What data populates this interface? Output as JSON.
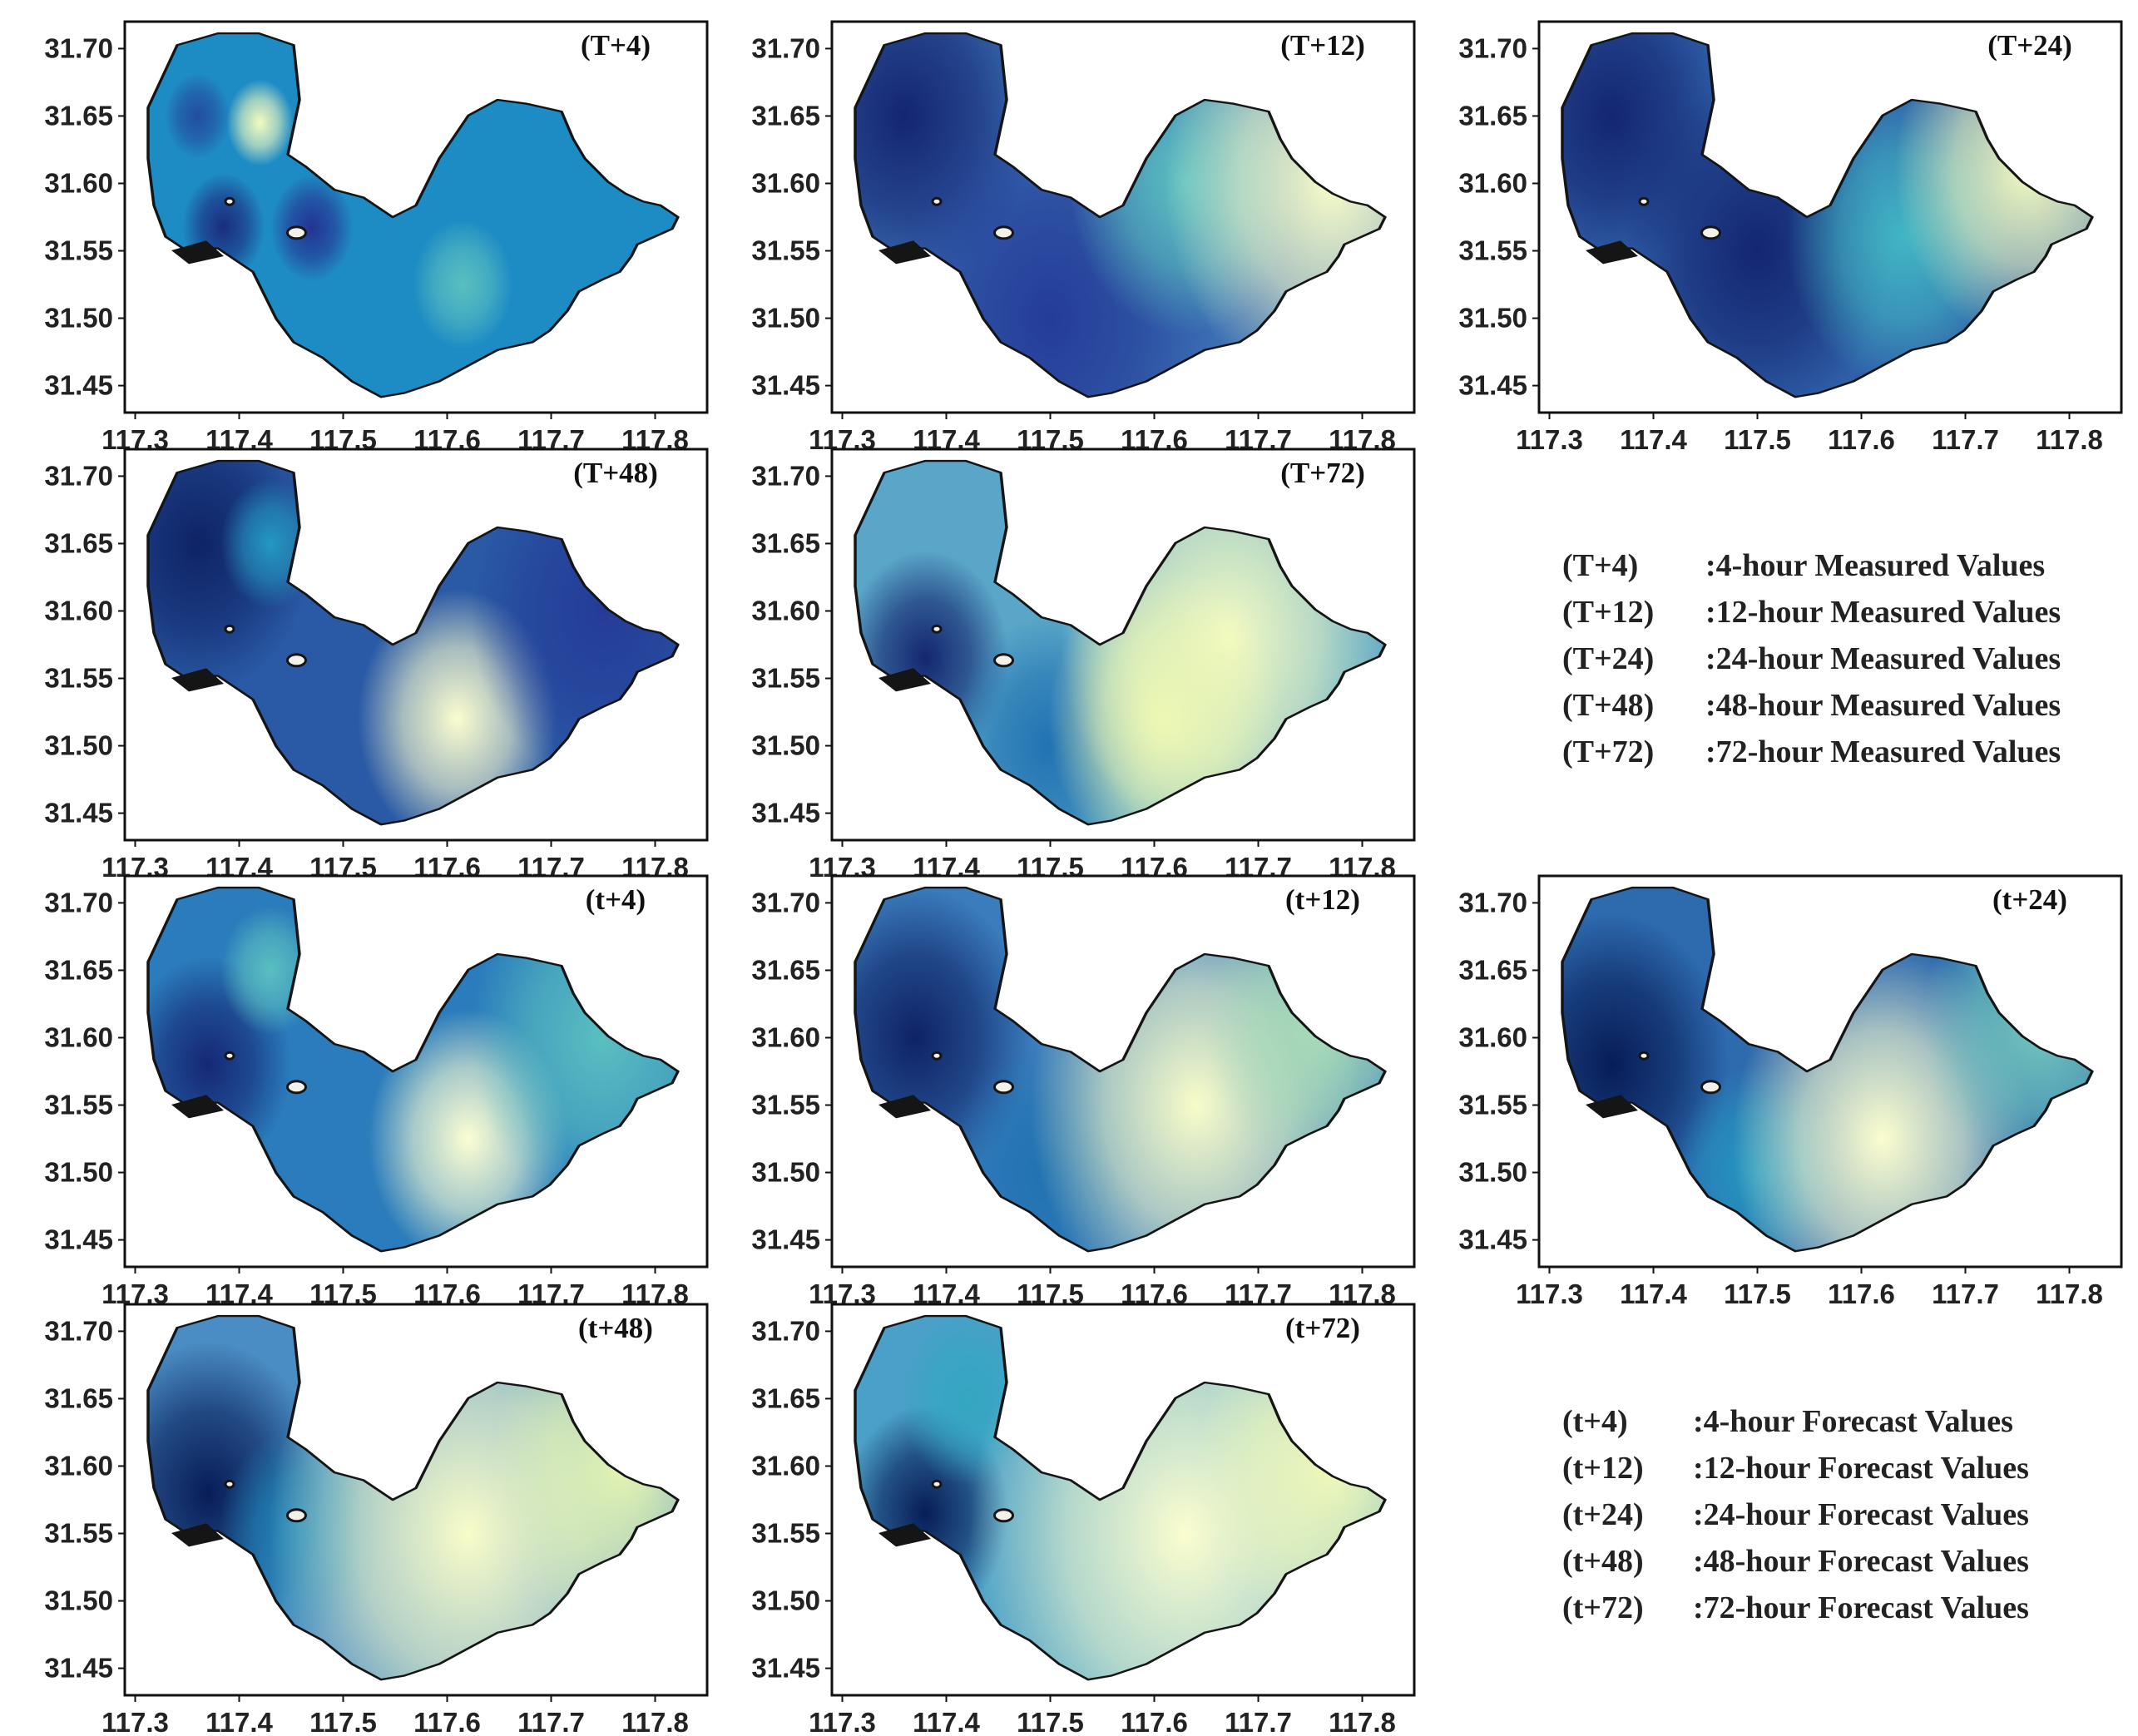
{
  "figure": {
    "description_axes": {
      "x_ticks": [
        "117.3",
        "117.4",
        "117.5",
        "117.6",
        "117.7",
        "117.8"
      ],
      "y_ticks": [
        "31.70",
        "31.65",
        "31.60",
        "31.55",
        "31.50",
        "31.45"
      ]
    },
    "colormap": [
      "#081d58",
      "#253494",
      "#225ea8",
      "#1d91c0",
      "#41b6c4",
      "#7fcdbb",
      "#c7e9b4",
      "#edf8b1",
      "#ffffd9"
    ],
    "panels": [
      {
        "id": "T4",
        "title": "(T+4)",
        "background": "#1e8cc4",
        "spots": [
          {
            "lon": 117.42,
            "lat": 31.645,
            "level": 0.92,
            "spread": 0.02
          },
          {
            "lon": 117.36,
            "lat": 31.65,
            "level": 0.2,
            "spread": 0.02
          },
          {
            "lon": 117.385,
            "lat": 31.568,
            "level": 0.08,
            "spread": 0.025
          },
          {
            "lon": 117.47,
            "lat": 31.567,
            "level": 0.12,
            "spread": 0.025
          },
          {
            "lon": 117.615,
            "lat": 31.525,
            "level": 0.55,
            "spread": 0.03
          }
        ]
      },
      {
        "id": "T12",
        "title": "(T+12)",
        "background": "#3b6fb4",
        "spots": [
          {
            "lon": 117.36,
            "lat": 31.65,
            "level": 0.05,
            "spread": 0.08
          },
          {
            "lon": 117.5,
            "lat": 31.5,
            "level": 0.15,
            "spread": 0.1
          },
          {
            "lon": 117.63,
            "lat": 31.6,
            "level": 0.55,
            "spread": 0.07
          },
          {
            "lon": 117.77,
            "lat": 31.6,
            "level": 0.95,
            "spread": 0.1
          }
        ]
      },
      {
        "id": "T24",
        "title": "(T+24)",
        "background": "#2f5fa8",
        "spots": [
          {
            "lon": 117.36,
            "lat": 31.65,
            "level": 0.05,
            "spread": 0.07
          },
          {
            "lon": 117.5,
            "lat": 31.55,
            "level": 0.05,
            "spread": 0.08
          },
          {
            "lon": 117.64,
            "lat": 31.56,
            "level": 0.5,
            "spread": 0.07
          },
          {
            "lon": 117.76,
            "lat": 31.61,
            "level": 0.92,
            "spread": 0.08
          }
        ]
      },
      {
        "id": "T48",
        "title": "(T+48)",
        "background": "#2a5aa6",
        "spots": [
          {
            "lon": 117.36,
            "lat": 31.65,
            "level": 0.03,
            "spread": 0.07
          },
          {
            "lon": 117.43,
            "lat": 31.65,
            "level": 0.4,
            "spread": 0.03
          },
          {
            "lon": 117.61,
            "lat": 31.52,
            "level": 0.97,
            "spread": 0.06
          },
          {
            "lon": 117.75,
            "lat": 31.6,
            "level": 0.15,
            "spread": 0.08
          }
        ]
      },
      {
        "id": "T72",
        "title": "(T+72)",
        "background": "#5aa6c8",
        "spots": [
          {
            "lon": 117.38,
            "lat": 31.565,
            "level": 0.05,
            "spread": 0.05
          },
          {
            "lon": 117.5,
            "lat": 31.5,
            "level": 0.3,
            "spread": 0.06
          },
          {
            "lon": 117.67,
            "lat": 31.58,
            "level": 0.93,
            "spread": 0.1
          },
          {
            "lon": 117.61,
            "lat": 31.52,
            "level": 0.88,
            "spread": 0.07
          }
        ]
      },
      {
        "id": "t4",
        "title": "(t+4)",
        "background": "#2a7cbc",
        "spots": [
          {
            "lon": 117.37,
            "lat": 31.58,
            "level": 0.06,
            "spread": 0.05
          },
          {
            "lon": 117.43,
            "lat": 31.65,
            "level": 0.55,
            "spread": 0.03
          },
          {
            "lon": 117.62,
            "lat": 31.525,
            "level": 0.98,
            "spread": 0.06
          },
          {
            "lon": 117.75,
            "lat": 31.6,
            "level": 0.55,
            "spread": 0.08
          }
        ]
      },
      {
        "id": "t12",
        "title": "(t+12)",
        "background": "#3a7cbc",
        "spots": [
          {
            "lon": 117.37,
            "lat": 31.6,
            "level": 0.03,
            "spread": 0.07
          },
          {
            "lon": 117.5,
            "lat": 31.5,
            "level": 0.3,
            "spread": 0.06
          },
          {
            "lon": 117.64,
            "lat": 31.55,
            "level": 0.95,
            "spread": 0.1
          },
          {
            "lon": 117.76,
            "lat": 31.61,
            "level": 0.7,
            "spread": 0.07
          }
        ]
      },
      {
        "id": "t24",
        "title": "(t+24)",
        "background": "#2d6aae",
        "spots": [
          {
            "lon": 117.36,
            "lat": 31.58,
            "level": 0.0,
            "spread": 0.07
          },
          {
            "lon": 117.5,
            "lat": 31.5,
            "level": 0.4,
            "spread": 0.05
          },
          {
            "lon": 117.62,
            "lat": 31.525,
            "level": 0.97,
            "spread": 0.09
          },
          {
            "lon": 117.77,
            "lat": 31.61,
            "level": 0.6,
            "spread": 0.07
          }
        ]
      },
      {
        "id": "t48",
        "title": "(t+48)",
        "background": "#4a8cc4",
        "spots": [
          {
            "lon": 117.37,
            "lat": 31.58,
            "level": 0.0,
            "spread": 0.07
          },
          {
            "lon": 117.46,
            "lat": 31.55,
            "level": 0.35,
            "spread": 0.05
          },
          {
            "lon": 117.62,
            "lat": 31.55,
            "level": 0.95,
            "spread": 0.12
          },
          {
            "lon": 117.77,
            "lat": 31.6,
            "level": 0.85,
            "spread": 0.08
          }
        ]
      },
      {
        "id": "t72",
        "title": "(t+72)",
        "background": "#4aa0c8",
        "spots": [
          {
            "lon": 117.38,
            "lat": 31.565,
            "level": 0.0,
            "spread": 0.05
          },
          {
            "lon": 117.42,
            "lat": 31.65,
            "level": 0.45,
            "spread": 0.04
          },
          {
            "lon": 117.63,
            "lat": 31.55,
            "level": 0.97,
            "spread": 0.13
          },
          {
            "lon": 117.77,
            "lat": 31.6,
            "level": 0.9,
            "spread": 0.08
          }
        ]
      }
    ],
    "legend_measured": [
      {
        "key": "(T+4)",
        "desc": ":4-hour Measured Values"
      },
      {
        "key": "(T+12)",
        "desc": ":12-hour Measured Values"
      },
      {
        "key": "(T+24)",
        "desc": ":24-hour Measured Values"
      },
      {
        "key": "(T+48)",
        "desc": ":48-hour Measured Values"
      },
      {
        "key": "(T+72)",
        "desc": ":72-hour Measured Values"
      }
    ],
    "legend_forecast": [
      {
        "key": "(t+4)",
        "desc": ":4-hour Forecast Values"
      },
      {
        "key": "(t+12)",
        "desc": ":12-hour Forecast Values"
      },
      {
        "key": "(t+24)",
        "desc": ":24-hour Forecast Values"
      },
      {
        "key": "(t+48)",
        "desc": ":48-hour Forecast Values"
      },
      {
        "key": "(t+72)",
        "desc": ":72-hour Forecast Values"
      }
    ]
  }
}
